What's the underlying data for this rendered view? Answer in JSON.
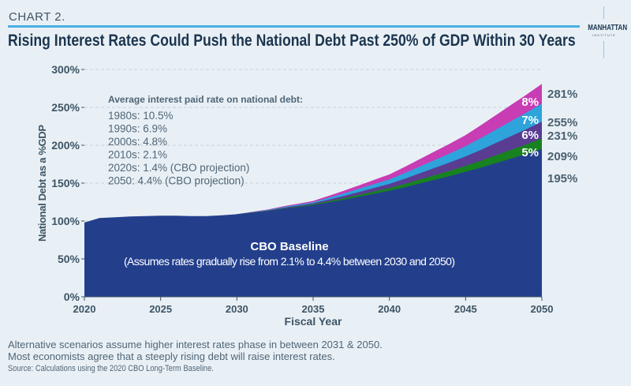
{
  "header": {
    "kicker": "CHART 2.",
    "title": "Rising Interest Rates Could Push the National Debt Past 250% of GDP Within 30 Years"
  },
  "logo": {
    "name": "MANHATTAN",
    "sub": "INSTITUTE"
  },
  "chart_data": {
    "type": "area",
    "xlabel": "Fiscal Year",
    "ylabel": "National Debt as a %GDP",
    "xlim": [
      2020,
      2050
    ],
    "ylim": [
      0,
      300
    ],
    "x_ticks": [
      "2020",
      "2025",
      "2030",
      "2035",
      "2040",
      "2045",
      "2050"
    ],
    "y_ticks": [
      "0%",
      "50%",
      "100%",
      "150%",
      "200%",
      "250%",
      "300%"
    ],
    "grid": "horizontal dashed",
    "colors": {
      "baseline": "#233f8c",
      "r5": "#17821f",
      "r6": "#5a3c93",
      "r7": "#2ea3dc",
      "r8": "#c83cb4"
    },
    "baseline": {
      "label": "CBO Baseline",
      "sublabel": "(Assumes rates gradually rise from 2.1% to 4.4% between 2030 and 2050)",
      "x": [
        2020,
        2021,
        2022,
        2023,
        2024,
        2025,
        2026,
        2027,
        2028,
        2029,
        2030,
        2031,
        2032,
        2033,
        2034,
        2035,
        2036,
        2037,
        2038,
        2039,
        2040,
        2041,
        2042,
        2043,
        2044,
        2045,
        2046,
        2047,
        2048,
        2049,
        2050
      ],
      "values": [
        98,
        104,
        105,
        106,
        106.5,
        107,
        107,
        106.5,
        106.5,
        107.5,
        109,
        111,
        113,
        116,
        118.5,
        121,
        124.5,
        128,
        132,
        136,
        140,
        144.5,
        149.5,
        154.5,
        159.5,
        165,
        170.5,
        176.5,
        182.5,
        188.5,
        195
      ],
      "end_label": "195%"
    },
    "scenarios": [
      {
        "name": "5%",
        "x": [
          2030,
          2035,
          2040,
          2045,
          2050
        ],
        "values": [
          109,
          121.9,
          143.5,
          172.9,
          209
        ],
        "end_label": "209%",
        "key": "r5"
      },
      {
        "name": "6%",
        "x": [
          2030,
          2035,
          2040,
          2045,
          2050
        ],
        "values": [
          109,
          123.3,
          149,
          185.3,
          231
        ],
        "end_label": "231%",
        "key": "r6"
      },
      {
        "name": "7%",
        "x": [
          2030,
          2035,
          2040,
          2045,
          2050
        ],
        "values": [
          109,
          124.8,
          155,
          198.8,
          255
        ],
        "end_label": "255%",
        "key": "r7"
      },
      {
        "name": "8%",
        "x": [
          2030,
          2035,
          2040,
          2045,
          2050
        ],
        "values": [
          109,
          126.4,
          161.5,
          213.4,
          281
        ],
        "end_label": "281%",
        "key": "r8"
      }
    ],
    "annotation": {
      "title": "Average interest paid rate on national debt:",
      "lines": [
        "1980s: 10.5%",
        "1990s: 6.9%",
        "2000s: 4.8%",
        "2010s: 2.1%",
        "2020s: 1.4% (CBO projection)",
        "2050:   4.4% (CBO projection)"
      ]
    }
  },
  "footer": {
    "notes": [
      "Alternative scenarios assume higher interest rates phase in between 2031 & 2050.",
      "Most economists agree that a steeply rising debt will raise interest rates."
    ],
    "source": "Source: Calculations using the 2020 CBO Long-Term Baseline."
  }
}
